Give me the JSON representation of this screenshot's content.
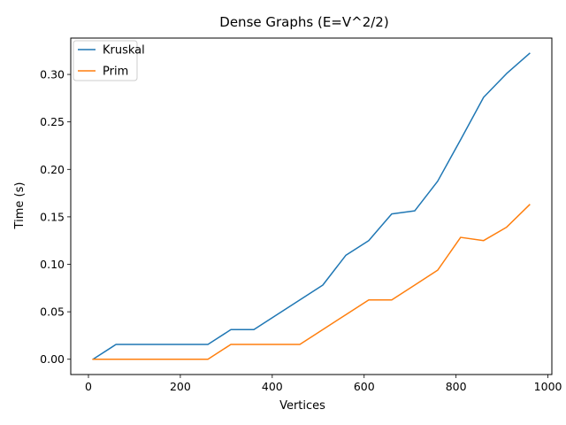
{
  "chart_data": {
    "type": "line",
    "title": "Dense Graphs (E=V^2/2)",
    "xlabel": "Vertices",
    "ylabel": "Time (s)",
    "xlim": [
      -38.5,
      1008.5
    ],
    "ylim": [
      -0.0161,
      0.3383
    ],
    "xticks": [
      0,
      200,
      400,
      600,
      800,
      1000
    ],
    "xtick_labels": [
      "0",
      "200",
      "400",
      "600",
      "800",
      "1000"
    ],
    "yticks": [
      0.0,
      0.05,
      0.1,
      0.15,
      0.2,
      0.25,
      0.3
    ],
    "ytick_labels": [
      "0.00",
      "0.05",
      "0.10",
      "0.15",
      "0.20",
      "0.25",
      "0.30"
    ],
    "grid": false,
    "legend_position": "top-left",
    "x": [
      10,
      60,
      110,
      160,
      210,
      260,
      310,
      360,
      410,
      460,
      510,
      560,
      610,
      660,
      710,
      760,
      810,
      860,
      910,
      960
    ],
    "series": [
      {
        "name": "Kruskal",
        "color": "#1f77b4",
        "values": [
          0.0,
          0.0156,
          0.0156,
          0.0156,
          0.0156,
          0.0156,
          0.0312,
          0.0312,
          0.0469,
          0.0625,
          0.0781,
          0.1094,
          0.125,
          0.1531,
          0.1563,
          0.1875,
          0.2313,
          0.2759,
          0.3009,
          0.3222
        ]
      },
      {
        "name": "Prim",
        "color": "#ff7f0e",
        "values": [
          0.0,
          0.0,
          0.0,
          0.0,
          0.0,
          0.0,
          0.0156,
          0.0156,
          0.0156,
          0.0156,
          0.0312,
          0.0469,
          0.0625,
          0.0625,
          0.0781,
          0.0938,
          0.1284,
          0.125,
          0.1391,
          0.1628
        ]
      }
    ]
  }
}
